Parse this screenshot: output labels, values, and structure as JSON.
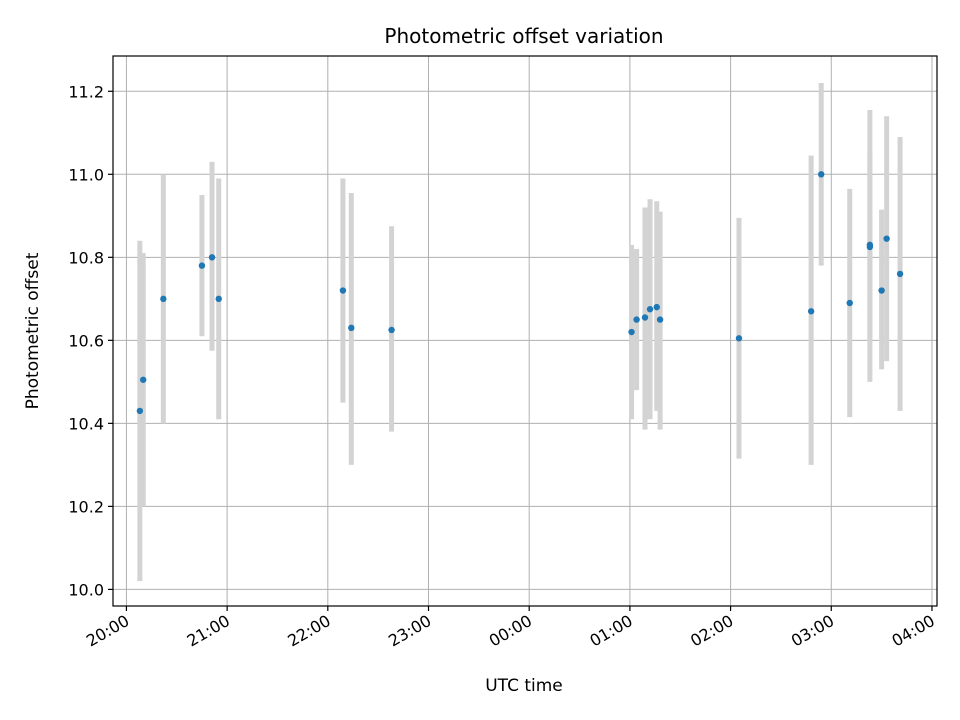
{
  "chart_data": {
    "type": "scatter",
    "title": "Photometric offset variation",
    "xlabel": "UTC time",
    "ylabel": "Photometric offset",
    "xlim": [
      "19:52",
      "24:03"
    ],
    "ylim": [
      9.96,
      11.285
    ],
    "x_tick_labels": [
      "20:00",
      "21:00",
      "22:00",
      "23:00",
      "00:00",
      "01:00",
      "02:00",
      "03:00",
      "04:00"
    ],
    "y_tick_values": [
      10.0,
      10.2,
      10.4,
      10.6,
      10.8,
      11.0,
      11.2
    ],
    "y_tick_labels": [
      "10.0",
      "10.2",
      "10.4",
      "10.6",
      "10.8",
      "11.0",
      "11.2"
    ],
    "grid": true,
    "marker_color": "#1f77b4",
    "errorbar_color": "#d3d3d3",
    "points": [
      {
        "time": "20:08",
        "y": 10.43,
        "ylow": 10.02,
        "yhigh": 10.84
      },
      {
        "time": "20:10",
        "y": 10.505,
        "ylow": 10.2,
        "yhigh": 10.81
      },
      {
        "time": "20:22",
        "y": 10.7,
        "ylow": 10.4,
        "yhigh": 11.0
      },
      {
        "time": "20:45",
        "y": 10.78,
        "ylow": 10.61,
        "yhigh": 10.95
      },
      {
        "time": "20:51",
        "y": 10.8,
        "ylow": 10.575,
        "yhigh": 11.03
      },
      {
        "time": "20:55",
        "y": 10.7,
        "ylow": 10.41,
        "yhigh": 10.99
      },
      {
        "time": "22:09",
        "y": 10.72,
        "ylow": 10.45,
        "yhigh": 10.99
      },
      {
        "time": "22:14",
        "y": 10.63,
        "ylow": 10.3,
        "yhigh": 10.955
      },
      {
        "time": "22:38",
        "y": 10.625,
        "ylow": 10.38,
        "yhigh": 10.875
      },
      {
        "time": "25:01",
        "y": 10.62,
        "ylow": 10.41,
        "yhigh": 10.83
      },
      {
        "time": "25:04",
        "y": 10.65,
        "ylow": 10.48,
        "yhigh": 10.82
      },
      {
        "time": "25:09",
        "y": 10.655,
        "ylow": 10.385,
        "yhigh": 10.92
      },
      {
        "time": "25:12",
        "y": 10.675,
        "ylow": 10.41,
        "yhigh": 10.94
      },
      {
        "time": "25:16",
        "y": 10.68,
        "ylow": 10.43,
        "yhigh": 10.935
      },
      {
        "time": "25:18",
        "y": 10.65,
        "ylow": 10.385,
        "yhigh": 10.91
      },
      {
        "time": "26:05",
        "y": 10.605,
        "ylow": 10.315,
        "yhigh": 10.895
      },
      {
        "time": "26:48",
        "y": 10.67,
        "ylow": 10.3,
        "yhigh": 11.045
      },
      {
        "time": "26:54",
        "y": 11.0,
        "ylow": 10.78,
        "yhigh": 11.22
      },
      {
        "time": "27:11",
        "y": 10.69,
        "ylow": 10.415,
        "yhigh": 10.965
      },
      {
        "time": "27:23",
        "y": 10.83,
        "ylow": 10.5,
        "yhigh": 11.155
      },
      {
        "time": "27:23",
        "y": 10.825,
        "ylow": 10.6,
        "yhigh": 11.05
      },
      {
        "time": "27:30",
        "y": 10.72,
        "ylow": 10.53,
        "yhigh": 10.915
      },
      {
        "time": "27:33",
        "y": 10.845,
        "ylow": 10.55,
        "yhigh": 11.14
      },
      {
        "time": "27:41",
        "y": 10.76,
        "ylow": 10.43,
        "yhigh": 11.09
      }
    ]
  }
}
